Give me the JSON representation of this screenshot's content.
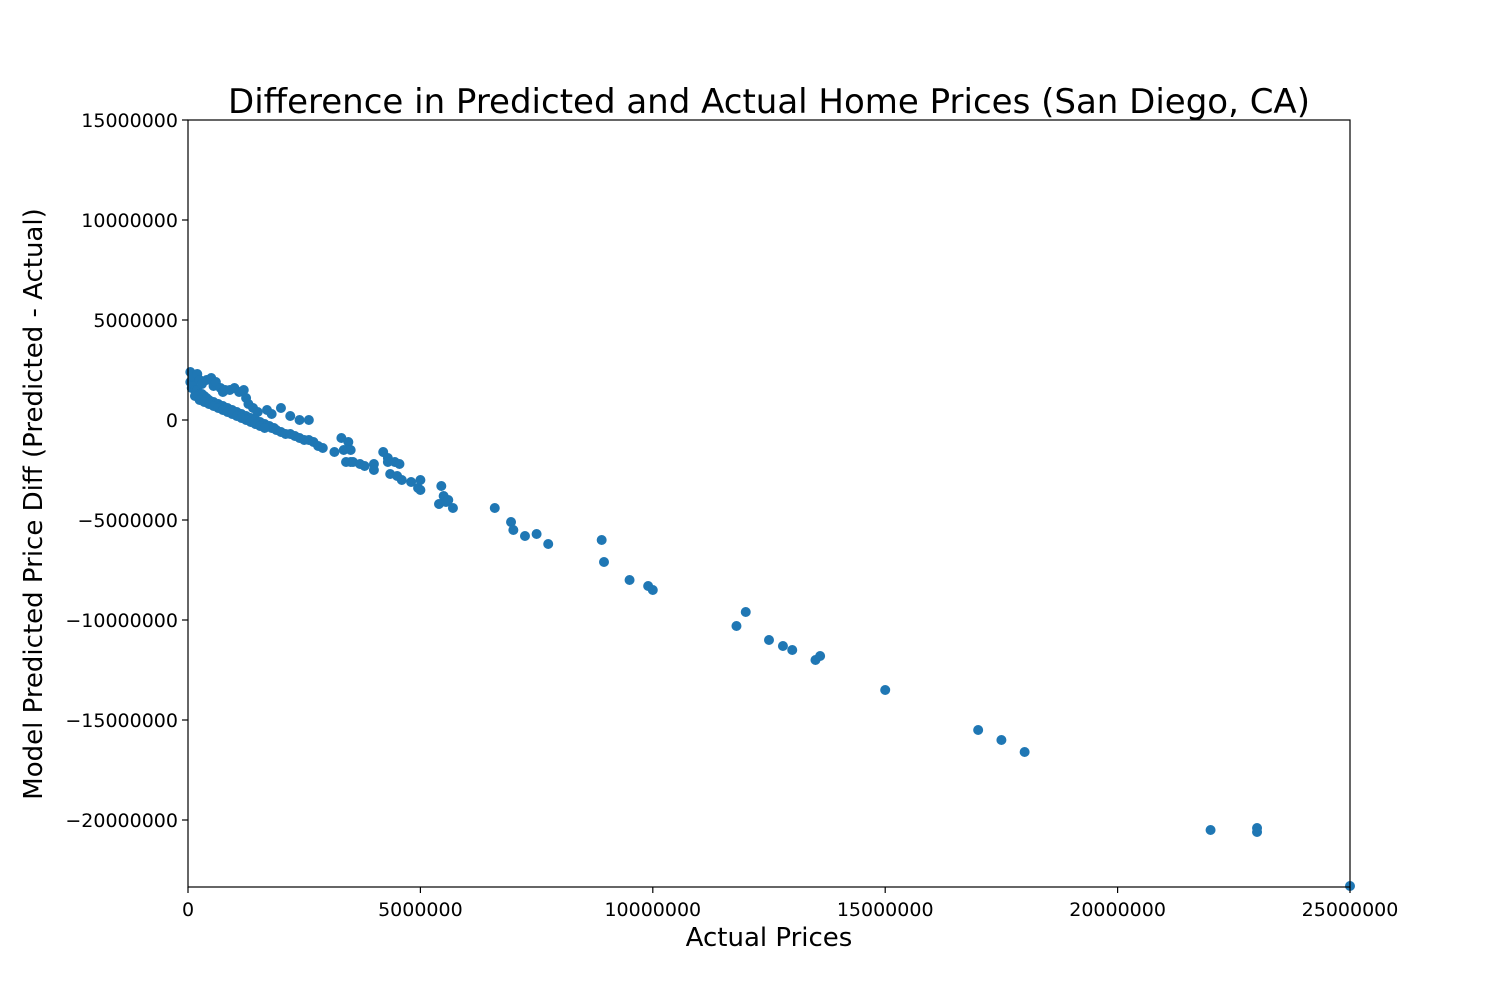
{
  "chart_data": {
    "type": "scatter",
    "title": "Difference in Predicted and Actual Home Prices (San Diego, CA)",
    "xlabel": "Actual Prices",
    "ylabel": "Model Predicted Price Diff (Predicted - Actual)",
    "xlim": [
      0,
      25000000
    ],
    "ylim": [
      -23350000,
      15000000
    ],
    "xticks": [
      0,
      5000000,
      10000000,
      15000000,
      20000000,
      25000000
    ],
    "xtick_labels": [
      "0",
      "5000000",
      "10000000",
      "15000000",
      "20000000",
      "25000000"
    ],
    "yticks": [
      15000000,
      10000000,
      5000000,
      0,
      -5000000,
      -10000000,
      -15000000,
      -20000000
    ],
    "ytick_labels": [
      "15000000",
      "10000000",
      "5000000",
      "0",
      "−5000000",
      "−10000000",
      "−15000000",
      "−20000000"
    ],
    "grid": false,
    "marker_color": "#1f77b4",
    "series": [
      {
        "x": [
          50000,
          80000,
          100000,
          150000,
          200000,
          250000,
          300000,
          350000,
          400000,
          450000,
          500000,
          550000,
          600000,
          650000,
          700000,
          750000,
          800000,
          850000,
          900000,
          950000,
          1000000,
          1050000,
          1100000,
          1150000,
          1200000,
          1250000,
          1300000,
          1350000,
          1400000,
          1450000,
          1500000,
          1550000,
          1600000,
          1650000,
          1700000,
          1750000,
          1800000,
          1850000,
          1900000,
          2000000,
          2100000,
          2200000,
          2300000,
          2400000,
          2500000,
          2600000,
          2700000,
          2800000,
          50000,
          100000,
          200000,
          250000,
          300000,
          400000,
          500000,
          550000,
          600000,
          700000,
          750000,
          800000,
          900000,
          1000000,
          1100000,
          1200000,
          1250000,
          1300000,
          1400000,
          1500000,
          1700000,
          1800000,
          2000000,
          2200000,
          2400000,
          2600000,
          150000,
          250000,
          350000,
          450000,
          550000,
          650000,
          750000,
          850000,
          950000,
          1050000,
          1150000,
          1250000,
          1350000,
          1450000,
          1550000,
          1650000,
          2900000,
          3150000,
          3300000,
          3350000,
          3400000,
          3450000,
          3500000,
          3500000,
          3550000,
          3700000,
          3800000,
          4000000,
          4000000,
          4200000,
          4300000,
          4300000,
          4350000,
          4450000,
          4500000,
          4550000,
          4600000,
          4800000,
          4950000,
          5000000,
          5000000,
          5400000,
          5450000,
          5500000,
          5550000,
          5600000,
          5700000,
          6600000,
          6950000,
          7000000,
          7250000,
          7500000,
          7750000,
          8900000,
          8950000,
          9500000,
          9900000,
          10000000,
          11800000,
          12000000,
          12500000,
          12800000,
          13000000,
          13500000,
          13600000,
          15000000,
          17000000,
          17500000,
          18000000,
          22000000,
          23000000,
          23000000,
          25000000
        ],
        "y": [
          1900000,
          1600000,
          1700000,
          1500000,
          1500000,
          1300000,
          1300000,
          1200000,
          1100000,
          1000000,
          900000,
          900000,
          800000,
          800000,
          700000,
          700000,
          600000,
          600000,
          500000,
          500000,
          400000,
          400000,
          300000,
          300000,
          200000,
          200000,
          100000,
          100000,
          0,
          0,
          -100000,
          -100000,
          -200000,
          -200000,
          -300000,
          -300000,
          -400000,
          -400000,
          -500000,
          -600000,
          -700000,
          -700000,
          -800000,
          -900000,
          -1000000,
          -1000000,
          -1100000,
          -1300000,
          2400000,
          2200000,
          2300000,
          2000000,
          1800000,
          2000000,
          2100000,
          1700000,
          1900000,
          1600000,
          1400000,
          1500000,
          1500000,
          1600000,
          1400000,
          1500000,
          1100000,
          800000,
          600000,
          400000,
          500000,
          300000,
          600000,
          200000,
          0,
          0,
          1200000,
          1000000,
          900000,
          800000,
          700000,
          600000,
          500000,
          400000,
          300000,
          200000,
          100000,
          0,
          -100000,
          -200000,
          -300000,
          -400000,
          -1400000,
          -1600000,
          -900000,
          -1500000,
          -2100000,
          -1100000,
          -1500000,
          -2100000,
          -2100000,
          -2200000,
          -2300000,
          -2200000,
          -2500000,
          -1600000,
          -1900000,
          -2100000,
          -2700000,
          -2100000,
          -2800000,
          -2200000,
          -3000000,
          -3100000,
          -3400000,
          -3000000,
          -3500000,
          -4200000,
          -3300000,
          -3800000,
          -4100000,
          -4000000,
          -4400000,
          -4400000,
          -5100000,
          -5500000,
          -5800000,
          -5700000,
          -6200000,
          -6000000,
          -7100000,
          -8000000,
          -8300000,
          -8500000,
          -10300000,
          -9600000,
          -11000000,
          -11300000,
          -11500000,
          -12000000,
          -11800000,
          -13500000,
          -15500000,
          -16000000,
          -16600000,
          -20500000,
          -20400000,
          -20600000,
          -23300000
        ]
      }
    ]
  }
}
